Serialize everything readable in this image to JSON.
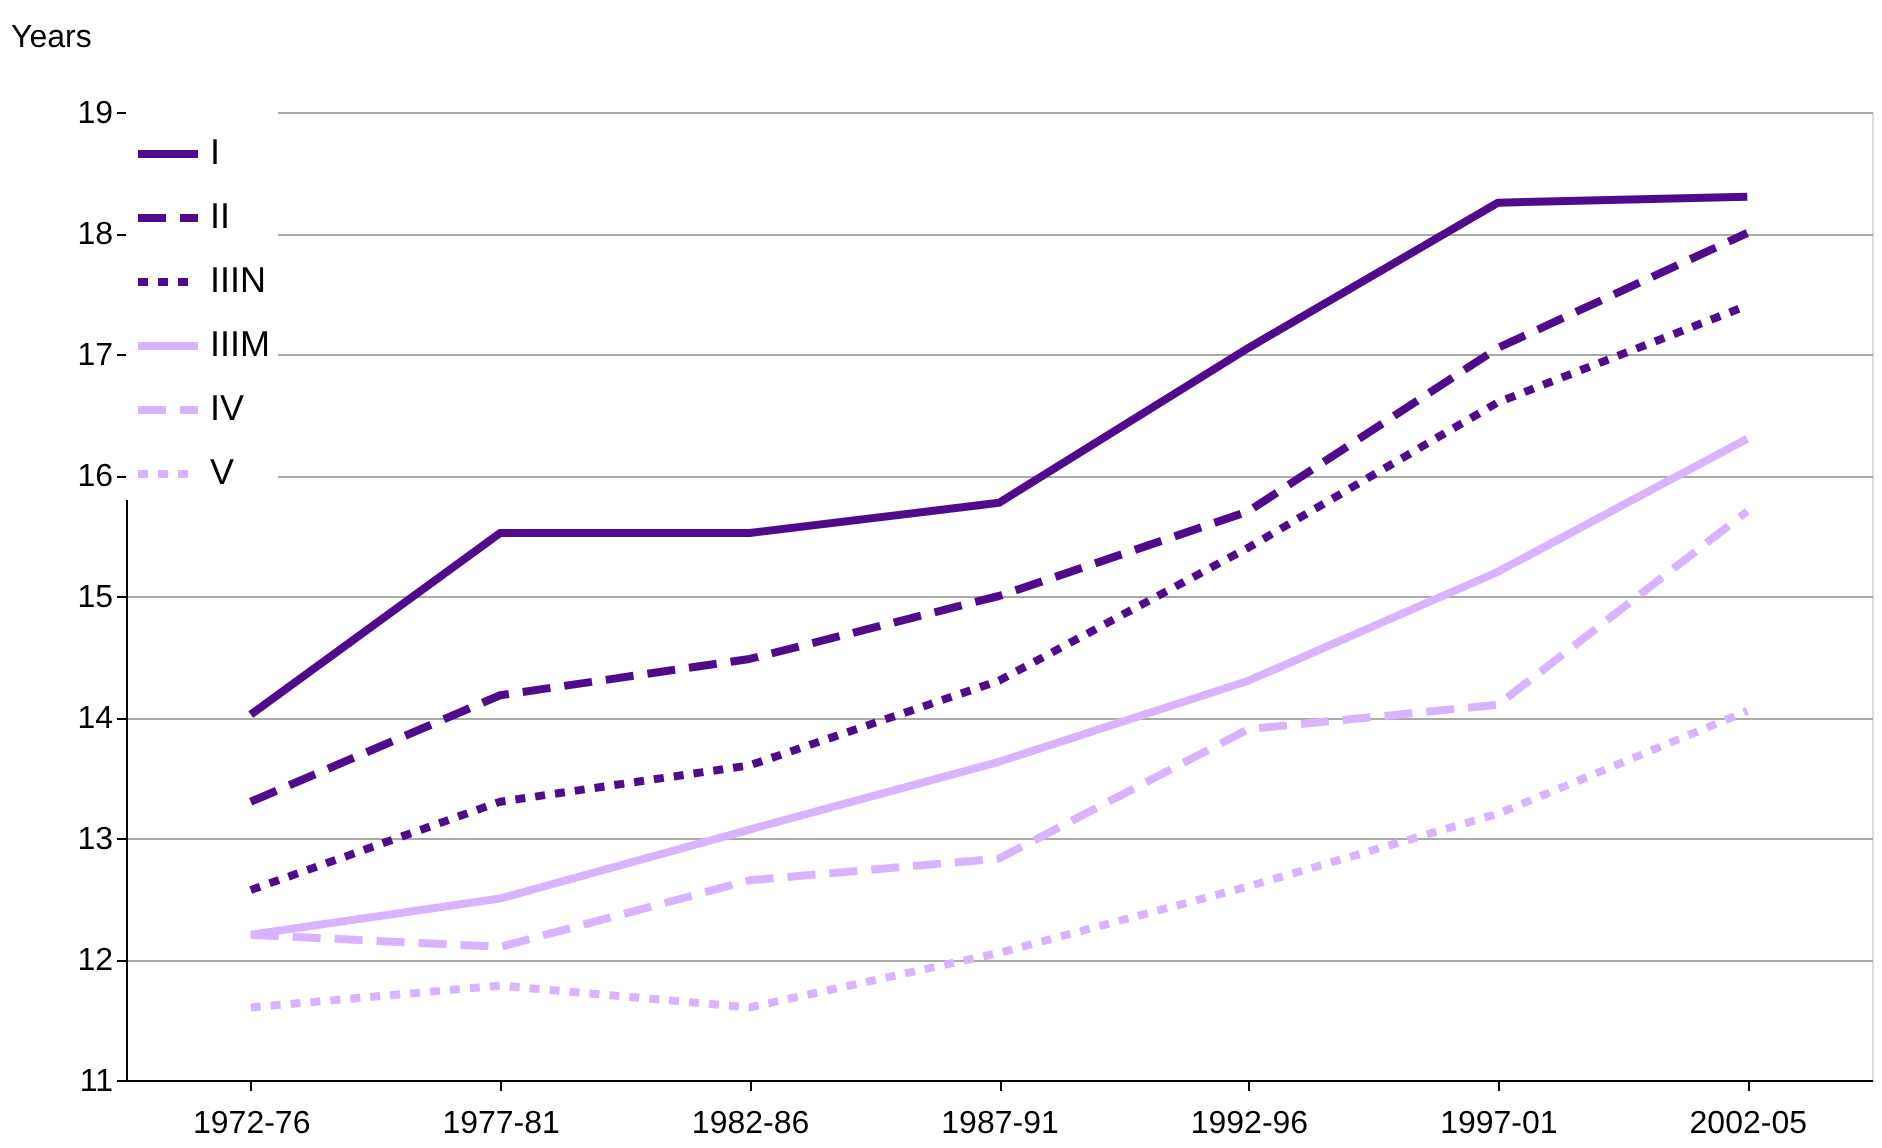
{
  "chart_data": {
    "type": "line",
    "ylabel": "Years",
    "categories": [
      "1972-76",
      "1977-81",
      "1982-86",
      "1987-91",
      "1992-96",
      "1997-01",
      "2002-05"
    ],
    "series": [
      {
        "name": "I",
        "color": "#500a8c",
        "line_style": "solid",
        "values": [
          14.02,
          15.52,
          15.52,
          15.77,
          17.05,
          18.25,
          18.3
        ]
      },
      {
        "name": "II",
        "color": "#500a8c",
        "line_style": "dashed",
        "values": [
          13.3,
          14.18,
          14.48,
          15.0,
          15.7,
          17.05,
          18.0
        ]
      },
      {
        "name": "IIIN",
        "color": "#500a8c",
        "line_style": "dotted",
        "values": [
          12.57,
          13.3,
          13.6,
          14.3,
          15.4,
          16.6,
          17.4
        ]
      },
      {
        "name": "IIIM",
        "color": "#d9b3ff",
        "line_style": "solid",
        "values": [
          12.2,
          12.5,
          13.07,
          13.63,
          14.3,
          15.2,
          16.3
        ]
      },
      {
        "name": "IV",
        "color": "#d9b3ff",
        "line_style": "dashed",
        "values": [
          12.2,
          12.1,
          12.65,
          12.83,
          13.9,
          14.1,
          15.7
        ]
      },
      {
        "name": "V",
        "color": "#d9b3ff",
        "line_style": "dotted",
        "values": [
          11.6,
          11.78,
          11.6,
          12.05,
          12.6,
          13.2,
          14.05
        ]
      }
    ],
    "ylim": [
      11,
      19
    ],
    "yticks": [
      11,
      12,
      13,
      14,
      15,
      16,
      17,
      18,
      19
    ],
    "grid": "y",
    "legend": "top left",
    "marker": "none"
  }
}
